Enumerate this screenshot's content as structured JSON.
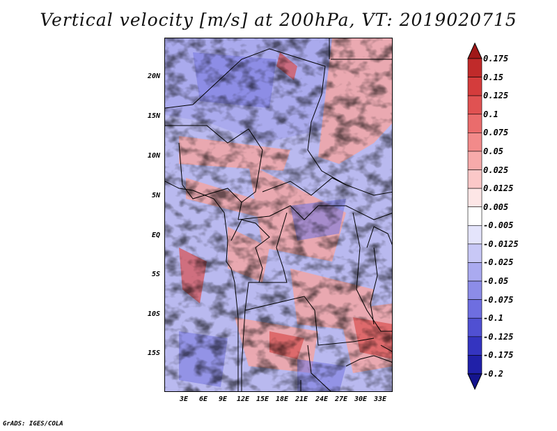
{
  "title": "Vertical velocity [m/s] at 200hPa, VT: 2019020715",
  "credit": "GrADS: IGES/COLA",
  "map": {
    "variable": "Vertical velocity",
    "units": "m/s",
    "level": "200hPa",
    "valid_time": "2019020715",
    "lat_ticks": [
      "20N",
      "15N",
      "10N",
      "5N",
      "EQ",
      "5S",
      "10S",
      "15S"
    ],
    "lon_ticks": [
      "3E",
      "6E",
      "9E",
      "12E",
      "15E",
      "18E",
      "21E",
      "24E",
      "27E",
      "30E",
      "33E"
    ]
  },
  "colorbar": {
    "labels": [
      "0.175",
      "0.15",
      "0.125",
      "0.1",
      "0.075",
      "0.05",
      "0.025",
      "0.0125",
      "0.005",
      "-0.005",
      "-0.0125",
      "-0.025",
      "-0.05",
      "-0.075",
      "-0.1",
      "-0.125",
      "-0.175",
      "-0.2"
    ],
    "colors": [
      "#a01818",
      "#c02a2a",
      "#d43c3c",
      "#e05252",
      "#ea6c6c",
      "#f28a8a",
      "#f7aaaa",
      "#fbc8c8",
      "#fde6e6",
      "#ffffff",
      "#e4e4fb",
      "#c8c8f6",
      "#aaaaf0",
      "#8c8ce8",
      "#6e6ee0",
      "#5050d2",
      "#3434c0",
      "#2020a8",
      "#14148e"
    ]
  }
}
